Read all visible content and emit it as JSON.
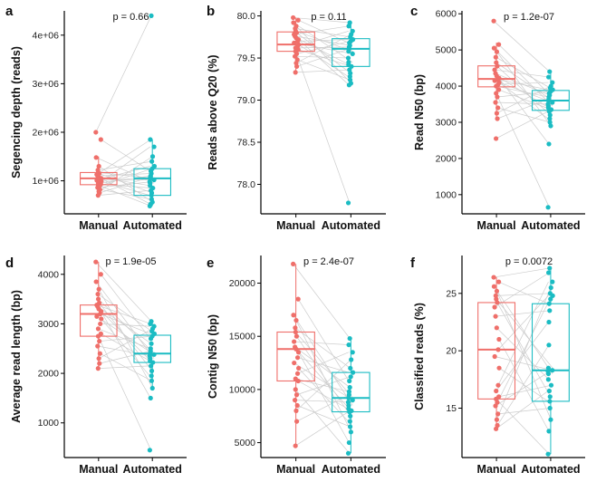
{
  "colors": {
    "manual": "#ef6f6a",
    "automated": "#1bbcc3",
    "pair_line": "#cccccc"
  },
  "chart_data": [
    {
      "panel": "a",
      "type": "box-paired",
      "categories": [
        "Manual",
        "Automated"
      ],
      "ylabel": "Segencing depth (reads)",
      "p_label": "p = 0.66",
      "ylim": [
        320000,
        4500000
      ],
      "yticks": [
        1000000,
        2000000,
        3000000,
        4000000
      ],
      "ytick_labels": [
        "1e+06",
        "2e+06",
        "3e+06",
        "4e+06"
      ],
      "box": {
        "Manual": {
          "whisker_low": 700000,
          "q1": 920000,
          "median": 1050000,
          "q3": 1170000,
          "whisker_high": 1500000
        },
        "Automated": {
          "whisker_low": 480000,
          "q1": 700000,
          "median": 1050000,
          "q3": 1250000,
          "whisker_high": 1850000
        }
      },
      "points": {
        "Manual": [
          2000000,
          1850000,
          1480000,
          1300000,
          1220000,
          1170000,
          1150000,
          1130000,
          1100000,
          1070000,
          1050000,
          1030000,
          1010000,
          990000,
          970000,
          950000,
          930000,
          910000,
          890000,
          860000,
          820000,
          780000,
          750000,
          700000
        ],
        "Automated": [
          4400000,
          1850000,
          1700000,
          1500000,
          1400000,
          1300000,
          1250000,
          1200000,
          1150000,
          1100000,
          1080000,
          1050000,
          1020000,
          980000,
          950000,
          900000,
          850000,
          800000,
          750000,
          700000,
          620000,
          560000,
          520000,
          480000
        ]
      }
    },
    {
      "panel": "b",
      "type": "box-paired",
      "categories": [
        "Manual",
        "Automated"
      ],
      "ylabel": "Reads above Q20 (%)",
      "p_label": "p = 0.11",
      "ylim": [
        77.65,
        80.06
      ],
      "yticks": [
        78.0,
        78.5,
        79.0,
        79.5,
        80.0
      ],
      "ytick_labels": [
        "78.0",
        "78.5",
        "79.0",
        "79.5",
        "80.0"
      ],
      "box": {
        "Manual": {
          "whisker_low": 79.33,
          "q1": 79.58,
          "median": 79.66,
          "q3": 79.81,
          "whisker_high": 79.98
        },
        "Automated": {
          "whisker_low": 79.18,
          "q1": 79.4,
          "median": 79.61,
          "q3": 79.73,
          "whisker_high": 79.92
        },
        "outliers": {
          "Automated": [
            77.78
          ]
        }
      },
      "points": {
        "Manual": [
          79.98,
          79.95,
          79.92,
          79.88,
          79.85,
          79.82,
          79.8,
          79.78,
          79.76,
          79.74,
          79.72,
          79.7,
          79.68,
          79.66,
          79.64,
          79.62,
          79.6,
          79.58,
          79.55,
          79.52,
          79.48,
          79.44,
          79.4,
          79.33
        ],
        "Automated": [
          79.92,
          79.88,
          79.82,
          79.78,
          79.75,
          79.72,
          79.7,
          79.68,
          79.65,
          79.63,
          79.61,
          79.58,
          79.55,
          79.5,
          79.45,
          79.42,
          79.4,
          79.36,
          79.32,
          79.28,
          79.24,
          79.2,
          79.18,
          77.78
        ]
      }
    },
    {
      "panel": "c",
      "type": "box-paired",
      "categories": [
        "Manual",
        "Automated"
      ],
      "ylabel": "Read N50 (bp)",
      "p_label": "p = 1.2e-07",
      "ylim": [
        470,
        6080
      ],
      "yticks": [
        1000,
        2000,
        3000,
        4000,
        5000,
        6000
      ],
      "ytick_labels": [
        "1000",
        "2000",
        "3000",
        "4000",
        "5000",
        "6000"
      ],
      "box": {
        "Manual": {
          "whisker_low": 3100,
          "q1": 3980,
          "median": 4200,
          "q3": 4560,
          "whisker_high": 5200
        },
        "Automated": {
          "whisker_low": 2900,
          "q1": 3330,
          "median": 3600,
          "q3": 3880,
          "whisker_high": 4400
        },
        "outliers": {
          "Manual": [
            5800,
            2550
          ],
          "Automated": [
            2400,
            650
          ]
        }
      },
      "points": {
        "Manual": [
          5800,
          5150,
          5050,
          4950,
          4800,
          4650,
          4550,
          4450,
          4350,
          4280,
          4220,
          4180,
          4150,
          4100,
          4050,
          4000,
          3900,
          3800,
          3700,
          3550,
          3400,
          3250,
          3100,
          2550
        ],
        "Automated": [
          4400,
          4250,
          4100,
          4000,
          3950,
          3900,
          3850,
          3800,
          3750,
          3700,
          3650,
          3600,
          3550,
          3500,
          3450,
          3400,
          3350,
          3300,
          3200,
          3100,
          3000,
          2900,
          2400,
          650
        ]
      }
    },
    {
      "panel": "d",
      "type": "box-paired",
      "categories": [
        "Manual",
        "Automated"
      ],
      "ylabel": "Average read length (bp)",
      "p_label": "p = 1.9e-05",
      "ylim": [
        300,
        4380
      ],
      "yticks": [
        1000,
        2000,
        3000,
        4000
      ],
      "ytick_labels": [
        "1000",
        "2000",
        "3000",
        "4000"
      ],
      "box": {
        "Manual": {
          "whisker_low": 2100,
          "q1": 2750,
          "median": 3200,
          "q3": 3380,
          "whisker_high": 4250
        },
        "Automated": {
          "whisker_low": 1700,
          "q1": 2220,
          "median": 2400,
          "q3": 2770,
          "whisker_high": 3050
        },
        "outliers": {
          "Automated": [
            1500,
            450
          ]
        }
      },
      "points": {
        "Manual": [
          4250,
          4000,
          3850,
          3700,
          3600,
          3500,
          3420,
          3380,
          3350,
          3300,
          3250,
          3200,
          3150,
          3100,
          3000,
          2900,
          2800,
          2750,
          2650,
          2550,
          2400,
          2300,
          2200,
          2100
        ],
        "Automated": [
          3050,
          3000,
          2950,
          2900,
          2850,
          2800,
          2750,
          2700,
          2600,
          2500,
          2450,
          2400,
          2380,
          2350,
          2300,
          2250,
          2220,
          2150,
          2050,
          1950,
          1850,
          1700,
          1500,
          450
        ]
      }
    },
    {
      "panel": "e",
      "type": "box-paired",
      "categories": [
        "Manual",
        "Automated"
      ],
      "ylabel": "Contig N50 (bp)",
      "p_label": "p = 2.4e-07",
      "ylim": [
        3600,
        22600
      ],
      "yticks": [
        5000,
        10000,
        15000,
        20000
      ],
      "ytick_labels": [
        "5000",
        "10000",
        "15000",
        "20000"
      ],
      "box": {
        "Manual": {
          "whisker_low": 4700,
          "q1": 10800,
          "median": 13800,
          "q3": 15400,
          "whisker_high": 21800
        },
        "Automated": {
          "whisker_low": 4000,
          "q1": 7900,
          "median": 9200,
          "q3": 11600,
          "whisker_high": 14800
        }
      },
      "points": {
        "Manual": [
          21800,
          18500,
          17000,
          16500,
          15800,
          15400,
          15000,
          14500,
          14000,
          13800,
          13500,
          13000,
          12500,
          12000,
          11500,
          11000,
          10800,
          10000,
          9500,
          9000,
          8500,
          8000,
          7000,
          4700
        ],
        "Automated": [
          14800,
          14200,
          13500,
          12800,
          12000,
          11600,
          11200,
          10800,
          10200,
          9800,
          9500,
          9200,
          9000,
          8800,
          8500,
          8200,
          8000,
          7900,
          7500,
          7000,
          6500,
          6000,
          5000,
          4000
        ]
      }
    },
    {
      "panel": "f",
      "type": "box-paired",
      "categories": [
        "Manual",
        "Automated"
      ],
      "ylabel": "Classified reads (%)",
      "p_label": "p = 0.0072",
      "ylim": [
        10.7,
        28.3
      ],
      "yticks": [
        15,
        20,
        25
      ],
      "ytick_labels": [
        "15",
        "20",
        "25"
      ],
      "box": {
        "Manual": {
          "whisker_low": 13.2,
          "q1": 15.8,
          "median": 20.1,
          "q3": 24.2,
          "whisker_high": 26.4
        },
        "Automated": {
          "whisker_low": 11.0,
          "q1": 15.6,
          "median": 18.3,
          "q3": 24.1,
          "whisker_high": 27.2
        }
      },
      "points": {
        "Manual": [
          26.4,
          26.0,
          25.6,
          25.2,
          24.8,
          24.5,
          24.2,
          23.8,
          23.0,
          22.0,
          21.0,
          20.1,
          19.5,
          18.5,
          17.0,
          16.5,
          16.0,
          15.8,
          15.5,
          15.2,
          14.5,
          14.0,
          13.5,
          13.2
        ],
        "Automated": [
          27.2,
          26.8,
          26.0,
          25.5,
          25.0,
          24.8,
          24.5,
          24.1,
          23.5,
          22.5,
          20.5,
          18.5,
          18.3,
          18.2,
          18.0,
          17.5,
          17.0,
          16.5,
          16.0,
          15.6,
          15.0,
          14.0,
          13.0,
          11.0
        ]
      }
    }
  ]
}
